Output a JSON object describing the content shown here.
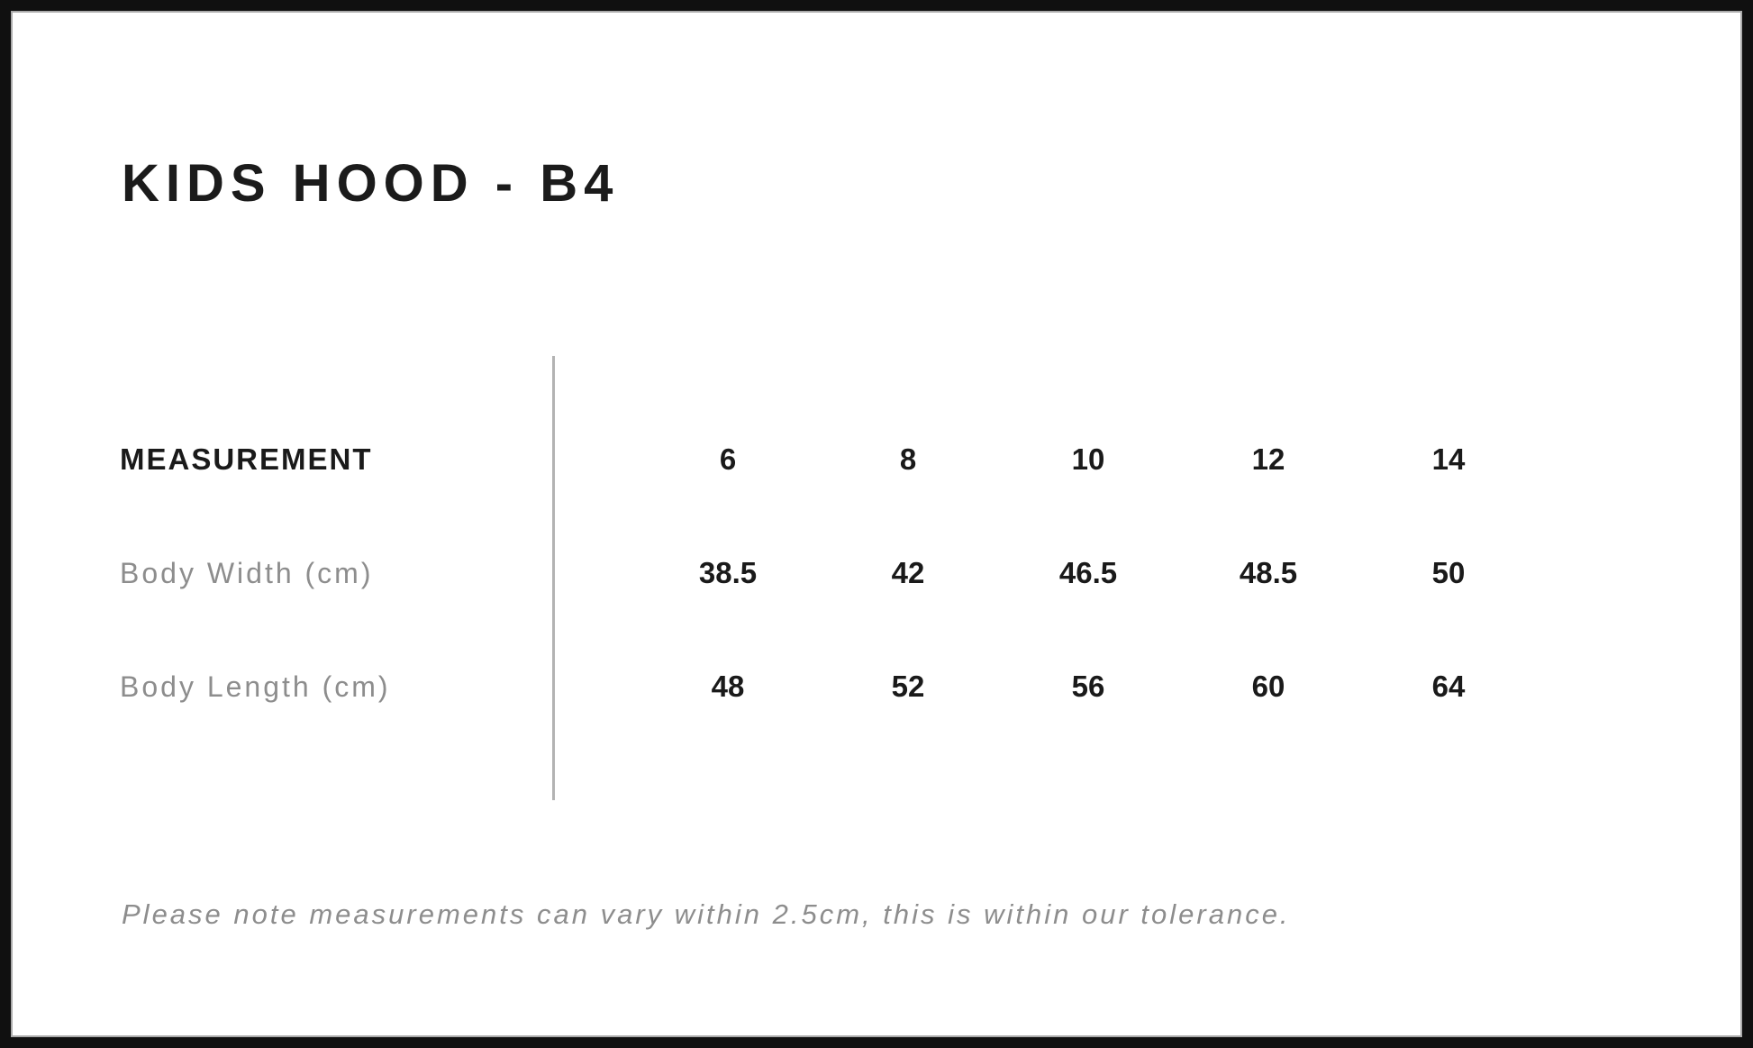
{
  "page": {
    "title": "KIDS HOOD - B4",
    "note": "Please note measurements can vary within 2.5cm, this is within our tolerance."
  },
  "size_table": {
    "header_label": "MEASUREMENT",
    "sizes": [
      "6",
      "8",
      "10",
      "12",
      "14"
    ],
    "rows": [
      {
        "label": "Body Width (cm)",
        "values": [
          "38.5",
          "42",
          "46.5",
          "48.5",
          "50"
        ]
      },
      {
        "label": "Body Length (cm)",
        "values": [
          "48",
          "52",
          "56",
          "60",
          "64"
        ]
      }
    ]
  },
  "colors": {
    "background": "#ffffff",
    "frame_border": "#101010",
    "frame_inner_line": "#ababab",
    "text_primary": "#1a1a1a",
    "text_muted": "#8d8d8d",
    "divider": "#b3b3b3"
  }
}
